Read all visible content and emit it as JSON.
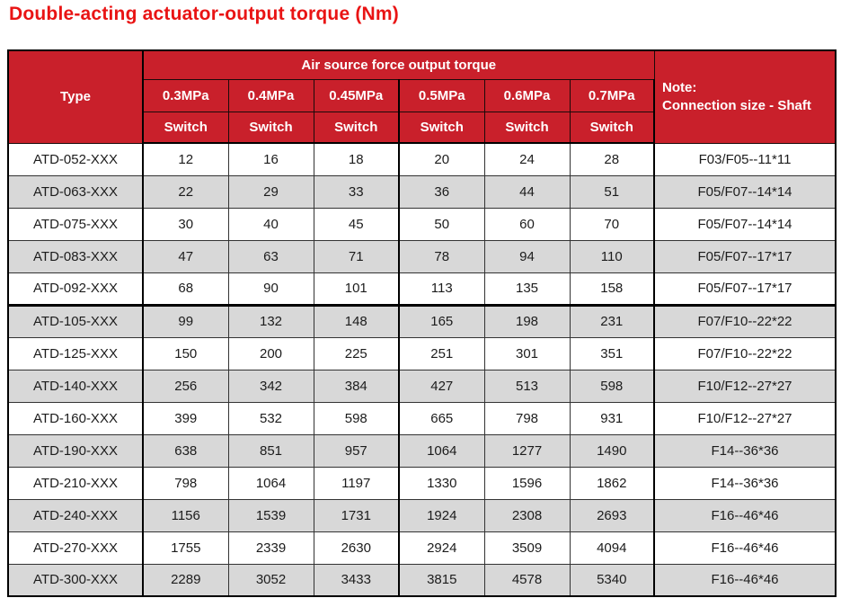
{
  "title": "Double-acting actuator-output torque (Nm)",
  "table": {
    "type_header": "Type",
    "group_header": "Air source force output torque",
    "pressures": [
      "0.3MPa",
      "0.4MPa",
      "0.45MPa",
      "0.5MPa",
      "0.6MPa",
      "0.7MPa"
    ],
    "switch_label": "Switch",
    "note_line1": "Note:",
    "note_line2": "Connection size - Shaft",
    "rows": [
      {
        "type": "ATD-052-XXX",
        "values": [
          "12",
          "16",
          "18",
          "20",
          "24",
          "28"
        ],
        "note": "F03/F05--11*11"
      },
      {
        "type": "ATD-063-XXX",
        "values": [
          "22",
          "29",
          "33",
          "36",
          "44",
          "51"
        ],
        "note": "F05/F07--14*14"
      },
      {
        "type": "ATD-075-XXX",
        "values": [
          "30",
          "40",
          "45",
          "50",
          "60",
          "70"
        ],
        "note": "F05/F07--14*14"
      },
      {
        "type": "ATD-083-XXX",
        "values": [
          "47",
          "63",
          "71",
          "78",
          "94",
          "110"
        ],
        "note": "F05/F07--17*17"
      },
      {
        "type": "ATD-092-XXX",
        "values": [
          "68",
          "90",
          "101",
          "113",
          "135",
          "158"
        ],
        "note": "F05/F07--17*17"
      },
      {
        "type": "ATD-105-XXX",
        "values": [
          "99",
          "132",
          "148",
          "165",
          "198",
          "231"
        ],
        "note": "F07/F10--22*22"
      },
      {
        "type": "ATD-125-XXX",
        "values": [
          "150",
          "200",
          "225",
          "251",
          "301",
          "351"
        ],
        "note": "F07/F10--22*22"
      },
      {
        "type": "ATD-140-XXX",
        "values": [
          "256",
          "342",
          "384",
          "427",
          "513",
          "598"
        ],
        "note": "F10/F12--27*27"
      },
      {
        "type": "ATD-160-XXX",
        "values": [
          "399",
          "532",
          "598",
          "665",
          "798",
          "931"
        ],
        "note": "F10/F12--27*27"
      },
      {
        "type": "ATD-190-XXX",
        "values": [
          "638",
          "851",
          "957",
          "1064",
          "1277",
          "1490"
        ],
        "note": "F14--36*36"
      },
      {
        "type": "ATD-210-XXX",
        "values": [
          "798",
          "1064",
          "1197",
          "1330",
          "1596",
          "1862"
        ],
        "note": "F14--36*36"
      },
      {
        "type": "ATD-240-XXX",
        "values": [
          "1156",
          "1539",
          "1731",
          "1924",
          "2308",
          "2693"
        ],
        "note": "F16--46*46"
      },
      {
        "type": "ATD-270-XXX",
        "values": [
          "1755",
          "2339",
          "2630",
          "2924",
          "3509",
          "4094"
        ],
        "note": "F16--46*46"
      },
      {
        "type": "ATD-300-XXX",
        "values": [
          "2289",
          "3052",
          "3433",
          "3815",
          "4578",
          "5340"
        ],
        "note": "F16--46*46"
      }
    ]
  },
  "colors": {
    "title_red": "#e91414",
    "header_red": "#c9202b",
    "zebra_gray": "#d8d8d8",
    "row_white": "#ffffff",
    "border_thin": "#333333",
    "border_thick": "#000000",
    "text_dark": "#1c1c1c"
  }
}
